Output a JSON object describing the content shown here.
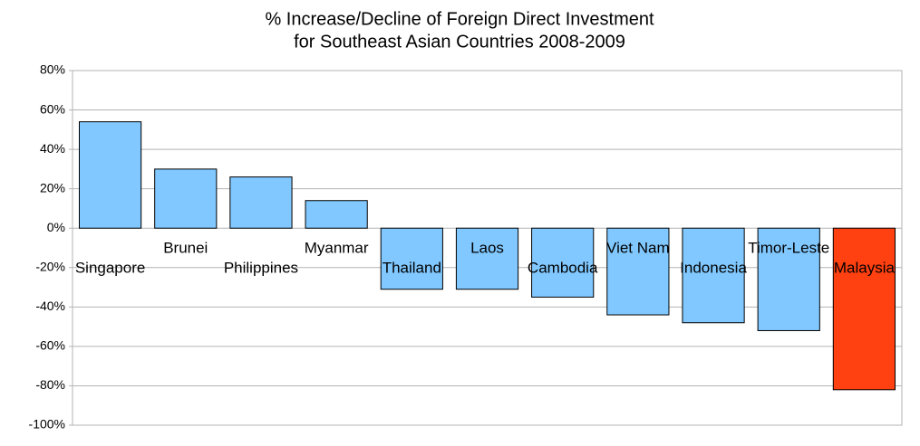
{
  "chart_data": {
    "type": "bar",
    "title": [
      "% Increase/Decline of Foreign Direct Investment",
      "for Southeast Asian Countries 2008-2009"
    ],
    "categories": [
      "Singapore",
      "Brunei",
      "Philippines",
      "Myanmar",
      "Thailand",
      "Laos",
      "Cambodia",
      "Viet Nam",
      "Indonesia",
      "Timor-Leste",
      "Malaysia"
    ],
    "values": [
      54,
      30,
      26,
      14,
      -31,
      -31,
      -35,
      -44,
      -48,
      -52,
      -82
    ],
    "colors": [
      "#80c8ff",
      "#80c8ff",
      "#80c8ff",
      "#80c8ff",
      "#80c8ff",
      "#80c8ff",
      "#80c8ff",
      "#80c8ff",
      "#80c8ff",
      "#80c8ff",
      "#ff4010"
    ],
    "ylim": [
      -100,
      80
    ],
    "yticks": [
      {
        "value": -100,
        "label": "-100%"
      },
      {
        "value": -80,
        "label": "-80%"
      },
      {
        "value": -60,
        "label": "-60%"
      },
      {
        "value": -40,
        "label": "-40%"
      },
      {
        "value": -20,
        "label": "-20%"
      },
      {
        "value": 0,
        "label": "0%"
      },
      {
        "value": 20,
        "label": "20%"
      },
      {
        "value": 40,
        "label": "40%"
      },
      {
        "value": 60,
        "label": "60%"
      },
      {
        "value": 80,
        "label": "80%"
      }
    ],
    "grid": true
  }
}
